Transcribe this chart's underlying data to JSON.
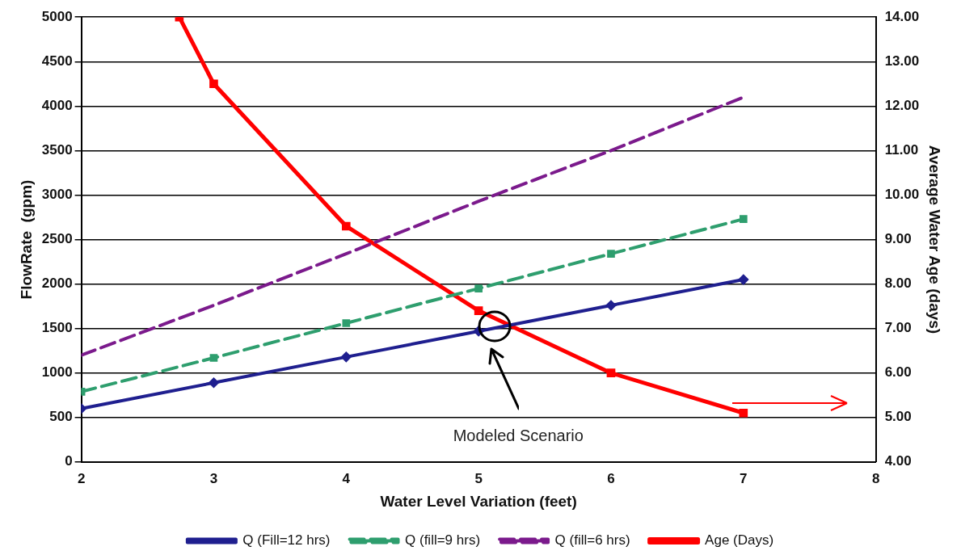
{
  "chart_data": {
    "type": "line",
    "xlabel": "Water Level Variation (feet)",
    "ylabel": "FlowRate  (gpm)",
    "y2label": "Average Water Age (days)",
    "x": [
      2,
      3,
      4,
      5,
      6,
      7
    ],
    "series": [
      {
        "name": "Q (Fill=12 hrs)",
        "color": "#1f1f8f",
        "values": [
          600,
          890,
          1180,
          1470,
          1760,
          2050
        ],
        "marker": "diamond",
        "line_style": "solid"
      },
      {
        "name": "Q (fill=9 hrs)",
        "color": "#2e9e6e",
        "values": [
          790,
          1170,
          1560,
          1950,
          2340,
          2730
        ],
        "marker": "square",
        "line_style": "dashed"
      },
      {
        "name": "Q (fill=6 hrs)",
        "color": "#7b1a8c",
        "values": [
          1200,
          1760,
          2340,
          2930,
          3500,
          4100
        ],
        "marker": "none",
        "line_style": "dashed"
      },
      {
        "name": "Age (Days)",
        "color": "#ff0000",
        "axis": "y2",
        "x": [
          2.74,
          3,
          4,
          5,
          6,
          7
        ],
        "values": [
          14,
          12.5,
          9.3,
          7.4,
          6.0,
          5.1
        ],
        "marker": "square",
        "line_style": "solid"
      }
    ],
    "xlim": [
      2,
      8
    ],
    "xticks": [
      2,
      3,
      4,
      5,
      6,
      7,
      8
    ],
    "ylim": [
      0,
      5000
    ],
    "yticks": [
      0,
      500,
      1000,
      1500,
      2000,
      2500,
      3000,
      3500,
      4000,
      4500,
      5000
    ],
    "y2lim": [
      4,
      14
    ],
    "y2ticks": [
      {
        "value": 4,
        "label": "4.00"
      },
      {
        "value": 5,
        "label": "5.00"
      },
      {
        "value": 6,
        "label": "6.00"
      },
      {
        "value": 7,
        "label": "7.00"
      },
      {
        "value": 8,
        "label": "8.00"
      },
      {
        "value": 9,
        "label": "9.00"
      },
      {
        "value": 10,
        "label": "10.00"
      },
      {
        "value": 11,
        "label": "11.00"
      },
      {
        "value": 12,
        "label": "12.00"
      },
      {
        "value": 13,
        "label": "13.00"
      },
      {
        "value": 14,
        "label": "14.00"
      }
    ],
    "annotations": [
      "Modeled Scenario"
    ],
    "grid": "y",
    "legend": "bottom"
  }
}
